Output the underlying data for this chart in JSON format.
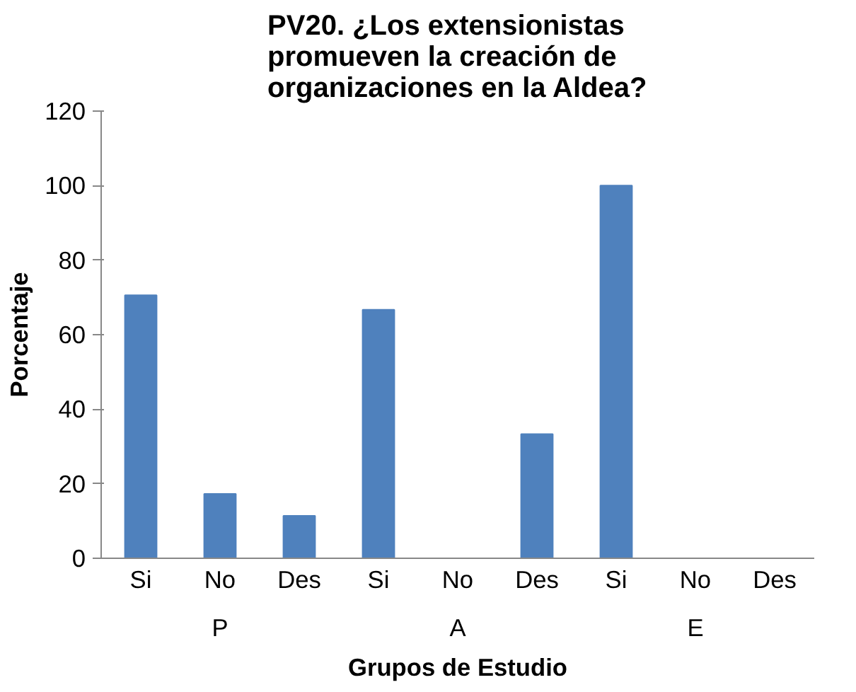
{
  "chart_data": {
    "type": "bar",
    "title": "PV20. ¿Los extensionistas\npromueven la creación de\norganizaciones en la Aldea?",
    "xlabel": "Grupos de Estudio",
    "ylabel": "Porcentaje",
    "categories": [
      "Si",
      "No",
      "Des",
      "Si",
      "No",
      "Des",
      "Si",
      "No",
      "Des"
    ],
    "annotations": [
      "P",
      "A",
      "E"
    ],
    "values": [
      70.6,
      17.3,
      11.4,
      66.7,
      0,
      33.3,
      100,
      0,
      0
    ],
    "color": "#4f81bd",
    "ylim": [
      0,
      120
    ],
    "yticks": [
      0,
      20,
      40,
      60,
      80,
      100,
      120
    ],
    "grid": false
  }
}
